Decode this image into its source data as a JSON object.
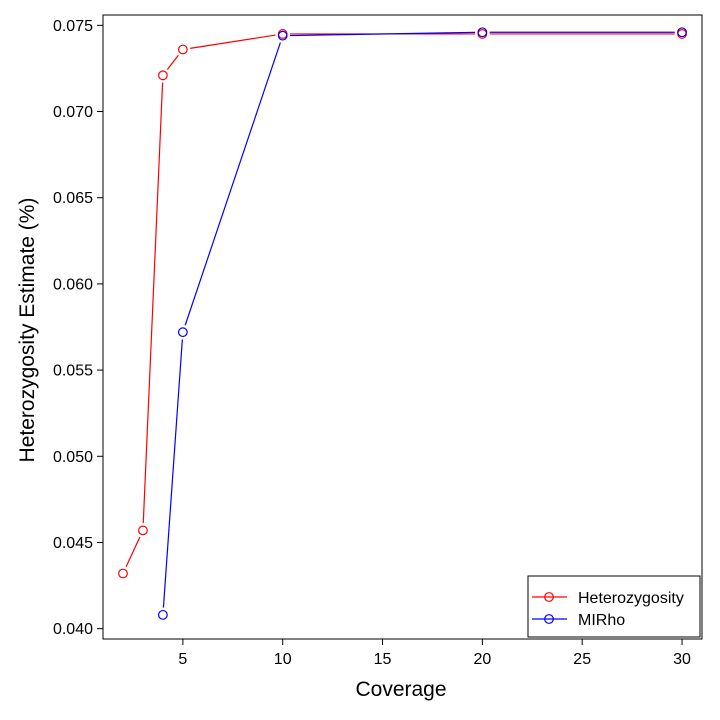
{
  "chart_data": {
    "type": "line",
    "title": "",
    "xlabel": "Coverage",
    "ylabel": "Heterozygosity Estimate (%)",
    "xlim": [
      1,
      31
    ],
    "ylim": [
      0.0394,
      0.0756
    ],
    "xticks": [
      5,
      10,
      15,
      20,
      25,
      30
    ],
    "xtick_labels": [
      "5",
      "10",
      "15",
      "20",
      "25",
      "30"
    ],
    "yticks": [
      0.04,
      0.045,
      0.05,
      0.055,
      0.06,
      0.065,
      0.07,
      0.075
    ],
    "ytick_labels": [
      "0.040",
      "0.045",
      "0.050",
      "0.055",
      "0.060",
      "0.065",
      "0.070",
      "0.075"
    ],
    "grid": false,
    "legend_position": "bottom-right",
    "series": [
      {
        "name": "Heterozygosity",
        "color": "#ff0000",
        "marker": "open-circle",
        "x": [
          2,
          3,
          4,
          5,
          10,
          20,
          30
        ],
        "y": [
          0.0432,
          0.0457,
          0.0721,
          0.0736,
          0.0745,
          0.0745,
          0.0745
        ]
      },
      {
        "name": "MIRho",
        "color": "#0000ff",
        "marker": "open-circle",
        "x": [
          4,
          5,
          10,
          20,
          30
        ],
        "y": [
          0.0408,
          0.0572,
          0.0744,
          0.0746,
          0.0746
        ]
      }
    ]
  }
}
